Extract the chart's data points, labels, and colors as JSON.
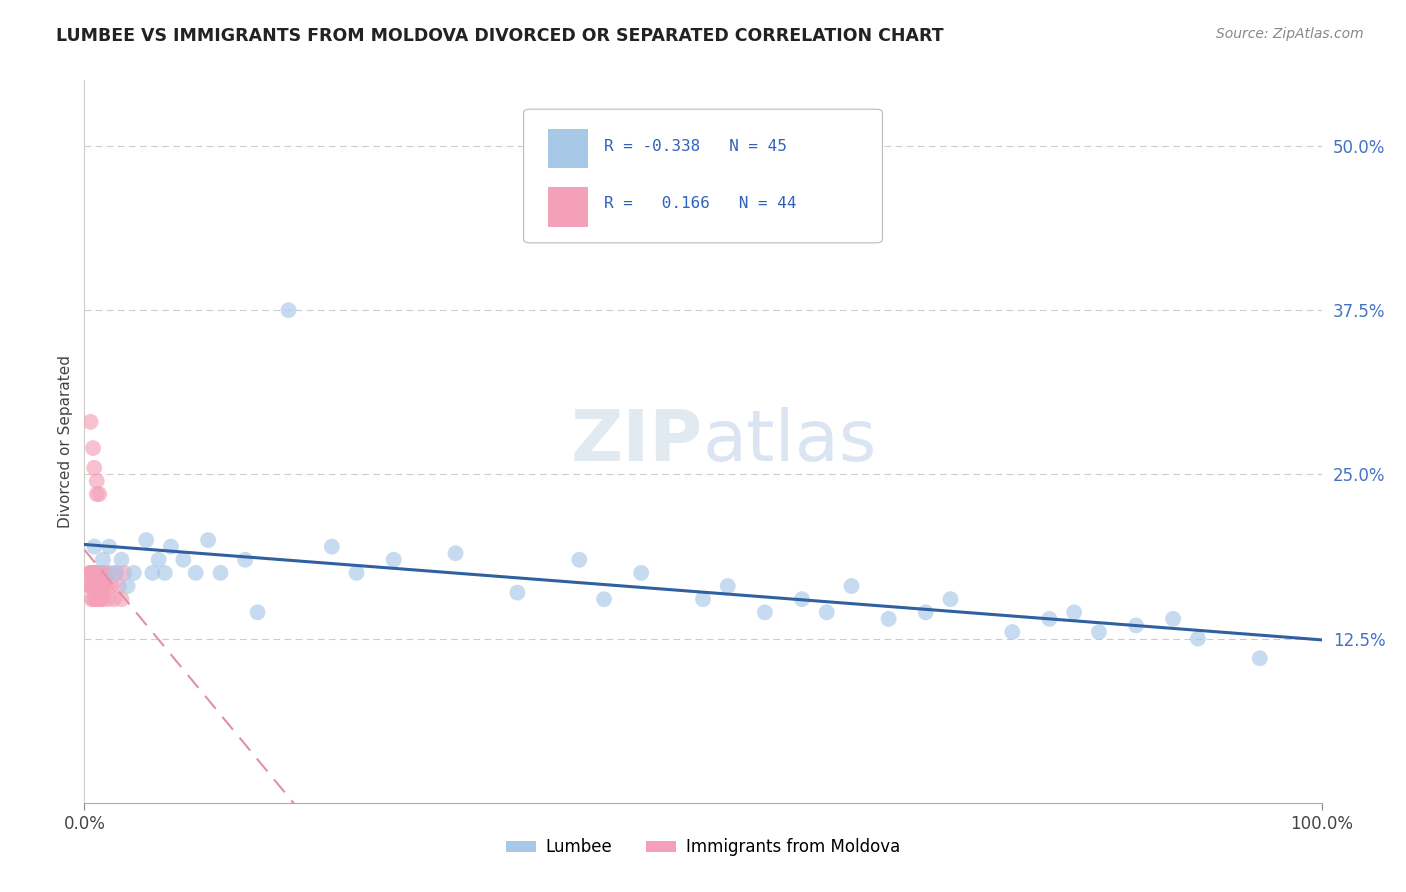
{
  "title": "LUMBEE VS IMMIGRANTS FROM MOLDOVA DIVORCED OR SEPARATED CORRELATION CHART",
  "source_text": "Source: ZipAtlas.com",
  "ylabel": "Divorced or Separated",
  "legend_label1": "Lumbee",
  "legend_label2": "Immigrants from Moldova",
  "r1": -0.338,
  "n1": 45,
  "r2": 0.166,
  "n2": 44,
  "xlim": [
    0.0,
    1.0
  ],
  "ylim": [
    0.0,
    0.55
  ],
  "ytick_values": [
    0.125,
    0.25,
    0.375,
    0.5
  ],
  "ytick_labels": [
    "12.5%",
    "25.0%",
    "37.5%",
    "50.0%"
  ],
  "color_blue": "#a8c8e8",
  "color_pink": "#f4a0b8",
  "line_blue": "#3060a0",
  "line_pink": "#e05070",
  "line_pink_dash": "#e090a8",
  "lumbee_x": [
    0.01,
    0.015,
    0.02,
    0.025,
    0.03,
    0.035,
    0.04,
    0.045,
    0.05,
    0.055,
    0.06,
    0.065,
    0.07,
    0.08,
    0.09,
    0.1,
    0.11,
    0.12,
    0.13,
    0.14,
    0.16,
    0.19,
    0.22,
    0.25,
    0.28,
    0.3,
    0.35,
    0.38,
    0.4,
    0.45,
    0.5,
    0.52,
    0.55,
    0.58,
    0.6,
    0.63,
    0.65,
    0.68,
    0.7,
    0.75,
    0.78,
    0.8,
    0.85,
    0.9,
    0.95
  ],
  "lumbee_y": [
    0.185,
    0.22,
    0.195,
    0.175,
    0.175,
    0.2,
    0.195,
    0.185,
    0.175,
    0.2,
    0.185,
    0.175,
    0.195,
    0.185,
    0.175,
    0.2,
    0.175,
    0.185,
    0.175,
    0.165,
    0.18,
    0.195,
    0.175,
    0.185,
    0.165,
    0.18,
    0.175,
    0.185,
    0.165,
    0.17,
    0.155,
    0.165,
    0.155,
    0.16,
    0.15,
    0.155,
    0.145,
    0.145,
    0.155,
    0.14,
    0.135,
    0.12,
    0.13,
    0.115,
    0.105
  ],
  "moldova_x": [
    0.003,
    0.005,
    0.006,
    0.007,
    0.008,
    0.009,
    0.01,
    0.01,
    0.011,
    0.012,
    0.013,
    0.013,
    0.014,
    0.015,
    0.015,
    0.016,
    0.017,
    0.018,
    0.019,
    0.02,
    0.02,
    0.021,
    0.022,
    0.023,
    0.024,
    0.025,
    0.026,
    0.027,
    0.028,
    0.03,
    0.032,
    0.034,
    0.036,
    0.038,
    0.04,
    0.042,
    0.045,
    0.048,
    0.05,
    0.055,
    0.007,
    0.01,
    0.013,
    0.017
  ],
  "moldova_y": [
    0.175,
    0.165,
    0.175,
    0.165,
    0.155,
    0.175,
    0.165,
    0.155,
    0.165,
    0.155,
    0.165,
    0.175,
    0.155,
    0.165,
    0.175,
    0.155,
    0.165,
    0.175,
    0.155,
    0.165,
    0.175,
    0.165,
    0.155,
    0.175,
    0.165,
    0.175,
    0.155,
    0.165,
    0.175,
    0.165,
    0.175,
    0.165,
    0.175,
    0.165,
    0.175,
    0.165,
    0.155,
    0.175,
    0.165,
    0.165,
    0.27,
    0.295,
    0.245,
    0.255
  ]
}
